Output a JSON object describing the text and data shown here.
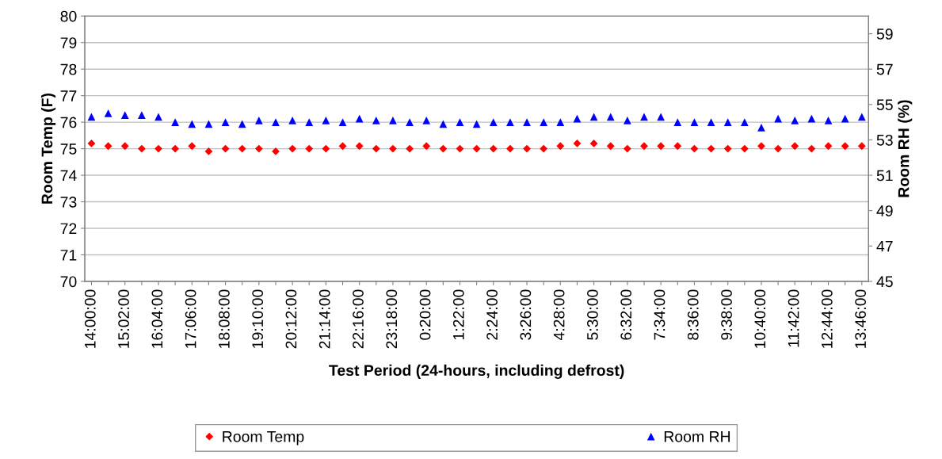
{
  "chart_data": {
    "type": "scatter",
    "xlabel": "Test Period (24-hours, including defrost)",
    "ylabel": "Room Temp (F)",
    "y2label": "Room RH (%)",
    "categories": [
      "14:00:00",
      null,
      "15:02:00",
      null,
      "16:04:00",
      null,
      "17:06:00",
      null,
      "18:08:00",
      null,
      "19:10:00",
      null,
      "20:12:00",
      null,
      "21:14:00",
      null,
      "22:16:00",
      null,
      "23:18:00",
      null,
      "0:20:00",
      null,
      "1:22:00",
      null,
      "2:24:00",
      null,
      "3:26:00",
      null,
      "4:28:00",
      null,
      "5:30:00",
      null,
      "6:32:00",
      null,
      "7:34:00",
      null,
      "8:36:00",
      null,
      "9:38:00",
      null,
      "10:40:00",
      null,
      "11:42:00",
      null,
      "12:44:00",
      null,
      "13:46:00"
    ],
    "series": [
      {
        "name": "Room Temp",
        "color": "#ff0000",
        "marker": "diamond",
        "values": [
          75.2,
          75.1,
          75.1,
          75.0,
          75.0,
          75.0,
          75.1,
          74.9,
          75.0,
          75.0,
          75.0,
          74.9,
          75.0,
          75.0,
          75.0,
          75.1,
          75.1,
          75.0,
          75.0,
          75.0,
          75.1,
          75.0,
          75.0,
          75.0,
          75.0,
          75.0,
          75.0,
          75.0,
          75.1,
          75.2,
          75.2,
          75.1,
          75.0,
          75.1,
          75.1,
          75.1,
          75.0,
          75.0,
          75.0,
          75.0,
          75.1,
          75.0,
          75.1,
          75.0,
          75.1,
          75.1,
          75.1
        ]
      },
      {
        "name": "Room RH",
        "color": "#0000ff",
        "marker": "triangle",
        "axis": "y2",
        "values": [
          54.3,
          54.5,
          54.4,
          54.4,
          54.3,
          54.0,
          53.9,
          53.9,
          54.0,
          53.9,
          54.1,
          54.0,
          54.1,
          54.0,
          54.1,
          54.0,
          54.2,
          54.1,
          54.1,
          54.0,
          54.1,
          53.9,
          54.0,
          53.9,
          54.0,
          54.0,
          54.0,
          54.0,
          54.0,
          54.2,
          54.3,
          54.3,
          54.1,
          54.3,
          54.3,
          54.0,
          54.0,
          54.0,
          54.0,
          54.0,
          53.7,
          54.2,
          54.1,
          54.2,
          54.1,
          54.2,
          54.3
        ]
      }
    ],
    "ylim": [
      70,
      80
    ],
    "yticks": [
      70,
      71,
      72,
      73,
      74,
      75,
      76,
      77,
      78,
      79,
      80
    ],
    "y2lim": [
      45,
      60
    ],
    "y2ticks": [
      45,
      47,
      49,
      51,
      53,
      55,
      57,
      59
    ],
    "grid": "y",
    "legend": "bottom"
  }
}
